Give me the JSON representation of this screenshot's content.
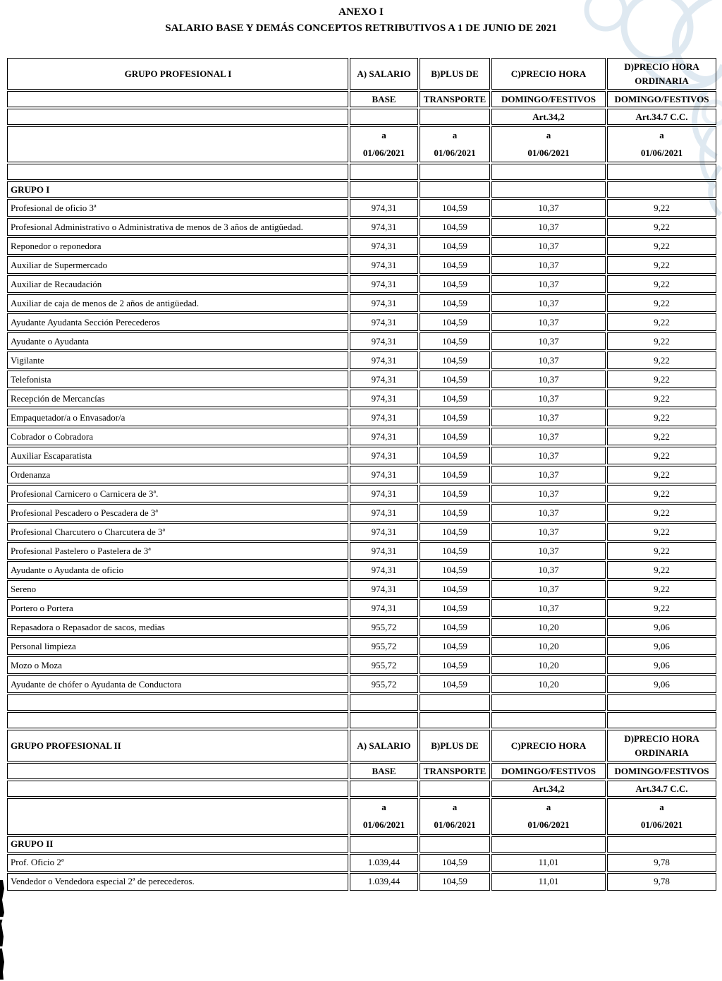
{
  "page_title": {
    "line1": "ANEXO I",
    "line2": "SALARIO BASE Y DEMÁS CONCEPTOS RETRIBUTIVOS A 1 DE JUNIO DE 2021"
  },
  "decoration": {
    "watermark_color": "#dfe9f1",
    "watermark_color_light": "#e9f0f6",
    "artifact_color": "#000000"
  },
  "sections": [
    {
      "name": "GRUPO PROFESIONAL I",
      "name_align": "center",
      "headers": {
        "c2": [
          "A) SALARIO",
          "BASE",
          ""
        ],
        "c3": [
          "B)PLUS DE",
          "TRANSPORTE",
          ""
        ],
        "c4": [
          "C)PRECIO HORA",
          "DOMINGO/FESTIVOS",
          "Art.34,2"
        ],
        "c5": [
          "D)PRECIO HORA\nORDINARIA",
          "DOMINGO/FESTIVOS",
          "Art.34.7 C.C."
        ]
      },
      "date_label": "a",
      "date_value": "01/06/2021",
      "empty_rows_before_group": 1,
      "group_label": "GRUPO I",
      "rows": [
        {
          "label": "Profesional de oficio 3ª",
          "values": [
            "974,31",
            "104,59",
            "10,37",
            "9,22"
          ]
        },
        {
          "label": "Profesional Administrativo o Administrativa de menos de 3 años de antigüedad.",
          "values": [
            "974,31",
            "104,59",
            "10,37",
            "9,22"
          ]
        },
        {
          "label": "Reponedor o reponedora",
          "values": [
            "974,31",
            "104,59",
            "10,37",
            "9,22"
          ]
        },
        {
          "label": "Auxiliar de Supermercado",
          "values": [
            "974,31",
            "104,59",
            "10,37",
            "9,22"
          ]
        },
        {
          "label": "Auxiliar de Recaudación",
          "values": [
            "974,31",
            "104,59",
            "10,37",
            "9,22"
          ]
        },
        {
          "label": "Auxiliar de caja de menos de 2 años de antigüedad.",
          "values": [
            "974,31",
            "104,59",
            "10,37",
            "9,22"
          ]
        },
        {
          "label": "Ayudante Ayudanta Sección Perecederos",
          "values": [
            "974,31",
            "104,59",
            "10,37",
            "9,22"
          ]
        },
        {
          "label": "Ayudante o Ayudanta",
          "values": [
            "974,31",
            "104,59",
            "10,37",
            "9,22"
          ]
        },
        {
          "label": "Vigilante",
          "values": [
            "974,31",
            "104,59",
            "10,37",
            "9,22"
          ]
        },
        {
          "label": "Telefonista",
          "values": [
            "974,31",
            "104,59",
            "10,37",
            "9,22"
          ]
        },
        {
          "label": "Recepción de Mercancías",
          "values": [
            "974,31",
            "104,59",
            "10,37",
            "9,22"
          ]
        },
        {
          "label": "Empaquetador/a o Envasador/a",
          "values": [
            "974,31",
            "104,59",
            "10,37",
            "9,22"
          ]
        },
        {
          "label": "Cobrador o Cobradora",
          "values": [
            "974,31",
            "104,59",
            "10,37",
            "9,22"
          ]
        },
        {
          "label": "Auxiliar Escaparatista",
          "values": [
            "974,31",
            "104,59",
            "10,37",
            "9,22"
          ]
        },
        {
          "label": "Ordenanza",
          "values": [
            "974,31",
            "104,59",
            "10,37",
            "9,22"
          ]
        },
        {
          "label": "Profesional Carnicero o Carnicera de 3ª.",
          "values": [
            "974,31",
            "104,59",
            "10,37",
            "9,22"
          ]
        },
        {
          "label": "Profesional Pescadero o Pescadera de 3ª",
          "values": [
            "974,31",
            "104,59",
            "10,37",
            "9,22"
          ]
        },
        {
          "label": "Profesional Charcutero o Charcutera de 3ª",
          "values": [
            "974,31",
            "104,59",
            "10,37",
            "9,22"
          ]
        },
        {
          "label": "Profesional Pastelero o Pastelera de 3ª",
          "values": [
            "974,31",
            "104,59",
            "10,37",
            "9,22"
          ]
        },
        {
          "label": "Ayudante o Ayudanta de oficio",
          "values": [
            "974,31",
            "104,59",
            "10,37",
            "9,22"
          ]
        },
        {
          "label": "Sereno",
          "values": [
            "974,31",
            "104,59",
            "10,37",
            "9,22"
          ]
        },
        {
          "label": "Portero o Portera",
          "values": [
            "974,31",
            "104,59",
            "10,37",
            "9,22"
          ]
        },
        {
          "label": "Repasadora o Repasador de sacos, medias",
          "values": [
            "955,72",
            "104,59",
            "10,20",
            "9,06"
          ]
        },
        {
          "label": "Personal limpieza",
          "values": [
            "955,72",
            "104,59",
            "10,20",
            "9,06"
          ]
        },
        {
          "label": "Mozo o Moza",
          "values": [
            "955,72",
            "104,59",
            "10,20",
            "9,06"
          ]
        },
        {
          "label": "Ayudante de chófer o Ayudanta de Conductora",
          "values": [
            "955,72",
            "104,59",
            "10,20",
            "9,06"
          ]
        }
      ],
      "empty_rows_after": 2
    },
    {
      "name": "GRUPO PROFESIONAL II",
      "name_align": "left",
      "headers": {
        "c2": [
          "A) SALARIO",
          "BASE",
          ""
        ],
        "c3": [
          "B)PLUS DE",
          "TRANSPORTE",
          ""
        ],
        "c4": [
          "C)PRECIO HORA",
          "DOMINGO/FESTIVOS",
          "Art.34,2"
        ],
        "c5": [
          "D)PRECIO HORA\nORDINARIA",
          "DOMINGO/FESTIVOS",
          "Art.34.7 C.C."
        ]
      },
      "date_label": "a",
      "date_value": "01/06/2021",
      "empty_rows_before_group": 0,
      "group_label": "GRUPO II",
      "rows": [
        {
          "label": "Prof. Oficio 2ª",
          "values": [
            "1.039,44",
            "104,59",
            "11,01",
            "9,78"
          ]
        },
        {
          "label": "Vendedor o Vendedora especial 2ª de perecederos.",
          "values": [
            "1.039,44",
            "104,59",
            "11,01",
            "9,78"
          ]
        }
      ],
      "empty_rows_after": 0
    }
  ]
}
